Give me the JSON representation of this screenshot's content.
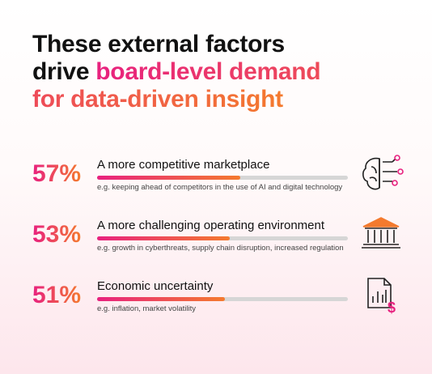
{
  "chart_data": {
    "type": "bar",
    "title": {
      "plain": "These external factors drive",
      "highlight": "board-level demand for data-driven insight"
    },
    "categories": [
      "A more competitive marketplace",
      "A more challenging operating environment",
      "Economic uncertainty"
    ],
    "descriptions": [
      "e.g. keeping ahead of competitors in the use of AI and digital technology",
      "e.g. growth in cyberthreats, supply chain disruption, increased regulation",
      "e.g. inflation, market volatility"
    ],
    "values": [
      57,
      53,
      51
    ],
    "value_labels": [
      "57%",
      "53%",
      "51%"
    ],
    "xlim": [
      0,
      100
    ],
    "colors": [
      "#e8217f",
      "#f47a2e"
    ]
  }
}
